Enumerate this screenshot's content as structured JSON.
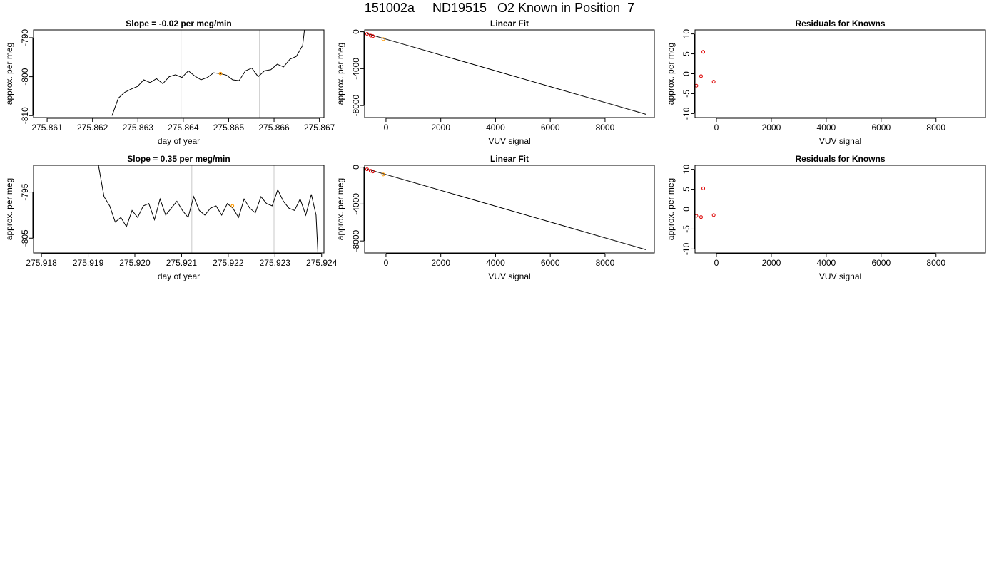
{
  "page": {
    "title": "151002a     ND19515   O2 Known in Position  7"
  },
  "chart_data": [
    {
      "id": "ts1",
      "type": "line",
      "title": "Slope =  -0.02  per meg/min",
      "xlabel": "day of year",
      "ylabel": "approx. per meg",
      "xlim": [
        275.8607,
        275.8671
      ],
      "ylim": [
        -810.5,
        -788.0
      ],
      "xticks": [
        275.861,
        275.862,
        275.863,
        275.864,
        275.865,
        275.866,
        275.867
      ],
      "xtick_labels": [
        "275.861",
        "275.862",
        "275.863",
        "275.864",
        "275.865",
        "275.866",
        "275.867"
      ],
      "yticks": [
        -790,
        -800,
        -810
      ],
      "ytick_labels": [
        "-790",
        "-800",
        "-810"
      ],
      "vlines": [
        275.86395,
        275.86568
      ],
      "highlight_point": {
        "x": 275.86482,
        "y": -799.2
      },
      "line_color": "#000000",
      "vline_color": "#c8c8c8",
      "highlight_color": "#ff9900",
      "series": [
        {
          "x": [
            275.86243,
            275.86257,
            275.86271,
            275.86285,
            275.86299,
            275.86313,
            275.86327,
            275.86341,
            275.86355,
            275.86369,
            275.86383,
            275.86397,
            275.86411,
            275.86425,
            275.86439,
            275.86453,
            275.86467,
            275.86481,
            275.86495,
            275.86509,
            275.86523,
            275.86537,
            275.86551,
            275.86565,
            275.86579,
            275.86593,
            275.86607,
            275.86621,
            275.86635,
            275.86649,
            275.86663,
            275.86667
          ],
          "values": [
            -810.0,
            -805.5,
            -804.0,
            -803.2,
            -802.5,
            -800.8,
            -801.5,
            -800.5,
            -801.8,
            -800.0,
            -799.5,
            -800.2,
            -798.5,
            -799.8,
            -800.8,
            -800.2,
            -799.0,
            -799.2,
            -799.6,
            -800.8,
            -801.0,
            -798.5,
            -797.8,
            -800.0,
            -798.5,
            -798.2,
            -796.8,
            -797.5,
            -795.5,
            -794.8,
            -792.0,
            -788.0
          ]
        }
      ]
    },
    {
      "id": "fit1",
      "type": "scatter",
      "title": "Linear Fit",
      "xlabel": "VUV signal",
      "ylabel": "approx. per meg",
      "xlim": [
        -780,
        9800
      ],
      "ylim": [
        -9300,
        200
      ],
      "xticks": [
        0,
        2000,
        4000,
        6000,
        8000
      ],
      "xtick_labels": [
        "0",
        "2000",
        "4000",
        "6000",
        "8000"
      ],
      "yticks": [
        0,
        -4000,
        -8000
      ],
      "ytick_labels": [
        "0",
        "-4000",
        "-8000"
      ],
      "fit_line": {
        "x": [
          -700,
          9500
        ],
        "y": [
          -200,
          -8950
        ]
      },
      "point_color": "#dd0000",
      "highlight_color": "#ff9900",
      "points": [
        {
          "x": -690,
          "y": -230
        },
        {
          "x": -560,
          "y": -420
        },
        {
          "x": -480,
          "y": -480
        },
        {
          "x": -100,
          "y": -790,
          "highlight": true
        }
      ]
    },
    {
      "id": "res1",
      "type": "scatter",
      "title": "Residuals for Knowns",
      "xlabel": "VUV signal",
      "ylabel": "approx. per meg",
      "xlim": [
        -780,
        9800
      ],
      "ylim": [
        -11,
        11
      ],
      "xticks": [
        0,
        2000,
        4000,
        6000,
        8000
      ],
      "xtick_labels": [
        "0",
        "2000",
        "4000",
        "6000",
        "8000"
      ],
      "yticks": [
        10,
        5,
        0,
        -5,
        -10
      ],
      "ytick_labels": [
        "10",
        "5",
        "0",
        "-5",
        "-10"
      ],
      "point_color": "#dd0000",
      "points": [
        {
          "x": -730,
          "y": -3.0
        },
        {
          "x": -560,
          "y": -0.6
        },
        {
          "x": -480,
          "y": 5.5
        },
        {
          "x": -100,
          "y": -2.0
        }
      ]
    },
    {
      "id": "ts2",
      "type": "line",
      "title": "Slope =  0.35  per meg/min",
      "xlabel": "day of year",
      "ylabel": "approx. per meg",
      "xlim": [
        275.91783,
        275.92405
      ],
      "ylim": [
        -808.2,
        -789.2
      ],
      "xticks": [
        275.918,
        275.919,
        275.92,
        275.921,
        275.922,
        275.923,
        275.924
      ],
      "xtick_labels": [
        "275.918",
        "275.919",
        "275.920",
        "275.921",
        "275.922",
        "275.923",
        "275.924"
      ],
      "yticks": [
        -795,
        -805
      ],
      "ytick_labels": [
        "-795",
        "-805"
      ],
      "vlines": [
        275.92122,
        275.92298
      ],
      "highlight_point": {
        "x": 275.92209,
        "y": -798.0
      },
      "line_color": "#000000",
      "vline_color": "#c8c8c8",
      "highlight_color": "#ff9900",
      "series": [
        {
          "x": [
            275.91922,
            275.91934,
            275.91946,
            275.91958,
            275.9197,
            275.91982,
            275.91994,
            275.92006,
            275.92018,
            275.9203,
            275.92042,
            275.92054,
            275.92066,
            275.92078,
            275.9209,
            275.92102,
            275.92114,
            275.92126,
            275.92138,
            275.9215,
            275.92162,
            275.92174,
            275.92186,
            275.92198,
            275.9221,
            275.92222,
            275.92234,
            275.92246,
            275.92258,
            275.9227,
            275.92282,
            275.92294,
            275.92306,
            275.92318,
            275.9233,
            275.92342,
            275.92354,
            275.92366,
            275.92378,
            275.92388,
            275.92392
          ],
          "values": [
            -789.2,
            -796.0,
            -798.0,
            -801.5,
            -800.5,
            -802.5,
            -799.0,
            -800.5,
            -798.0,
            -797.5,
            -801.0,
            -796.5,
            -800.0,
            -798.5,
            -797.0,
            -799.0,
            -800.5,
            -796.0,
            -799.0,
            -800.0,
            -798.5,
            -798.0,
            -800.0,
            -797.5,
            -798.5,
            -800.5,
            -796.5,
            -798.5,
            -799.5,
            -796.0,
            -797.5,
            -798.0,
            -794.5,
            -797.0,
            -798.5,
            -799.0,
            -796.5,
            -800.0,
            -795.5,
            -800.0,
            -808.2
          ]
        }
      ]
    },
    {
      "id": "fit2",
      "type": "scatter",
      "title": "Linear Fit",
      "xlabel": "VUV signal",
      "ylabel": "approx. per meg",
      "xlim": [
        -780,
        9800
      ],
      "ylim": [
        -9300,
        200
      ],
      "xticks": [
        0,
        2000,
        4000,
        6000,
        8000
      ],
      "xtick_labels": [
        "0",
        "2000",
        "4000",
        "6000",
        "8000"
      ],
      "yticks": [
        0,
        -4000,
        -8000
      ],
      "ytick_labels": [
        "0",
        "-4000",
        "-8000"
      ],
      "fit_line": {
        "x": [
          -700,
          9500
        ],
        "y": [
          -200,
          -8950
        ]
      },
      "point_color": "#dd0000",
      "highlight_color": "#ff9900",
      "points": [
        {
          "x": -690,
          "y": -230
        },
        {
          "x": -560,
          "y": -400
        },
        {
          "x": -480,
          "y": -470
        },
        {
          "x": -100,
          "y": -790,
          "highlight": true
        }
      ]
    },
    {
      "id": "res2",
      "type": "scatter",
      "title": "Residuals for Knowns",
      "xlabel": "VUV signal",
      "ylabel": "approx. per meg",
      "xlim": [
        -780,
        9800
      ],
      "ylim": [
        -11,
        11
      ],
      "xticks": [
        0,
        2000,
        4000,
        6000,
        8000
      ],
      "xtick_labels": [
        "0",
        "2000",
        "4000",
        "6000",
        "8000"
      ],
      "yticks": [
        10,
        5,
        0,
        -5,
        -10
      ],
      "ytick_labels": [
        "10",
        "5",
        "0",
        "-5",
        "-10"
      ],
      "point_color": "#dd0000",
      "points": [
        {
          "x": -730,
          "y": -1.7
        },
        {
          "x": -560,
          "y": -2.0
        },
        {
          "x": -480,
          "y": 5.2
        },
        {
          "x": -100,
          "y": -1.5
        }
      ]
    }
  ]
}
